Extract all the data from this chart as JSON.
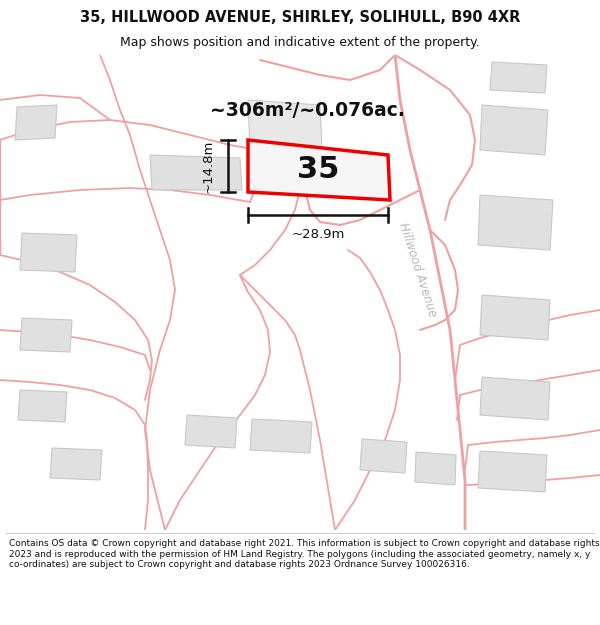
{
  "title_line1": "35, HILLWOOD AVENUE, SHIRLEY, SOLIHULL, B90 4XR",
  "title_line2": "Map shows position and indicative extent of the property.",
  "footer_text": "Contains OS data © Crown copyright and database right 2021. This information is subject to Crown copyright and database rights 2023 and is reproduced with the permission of HM Land Registry. The polygons (including the associated geometry, namely x, y co-ordinates) are subject to Crown copyright and database rights 2023 Ordnance Survey 100026316.",
  "area_text": "~306m²/~0.076ac.",
  "property_number": "35",
  "dim_width": "~28.9m",
  "dim_height": "~14.8m",
  "map_bg": "#ffffff",
  "property_border": "#ee0000",
  "property_fill": "#f5f5f5",
  "building_fill": "#e0e0e0",
  "building_border": "#c8c8c8",
  "road_color": "#f0a0a0",
  "road_label_color": "#b8b8b8",
  "dim_color": "#111111",
  "text_color": "#111111",
  "white": "#ffffff"
}
